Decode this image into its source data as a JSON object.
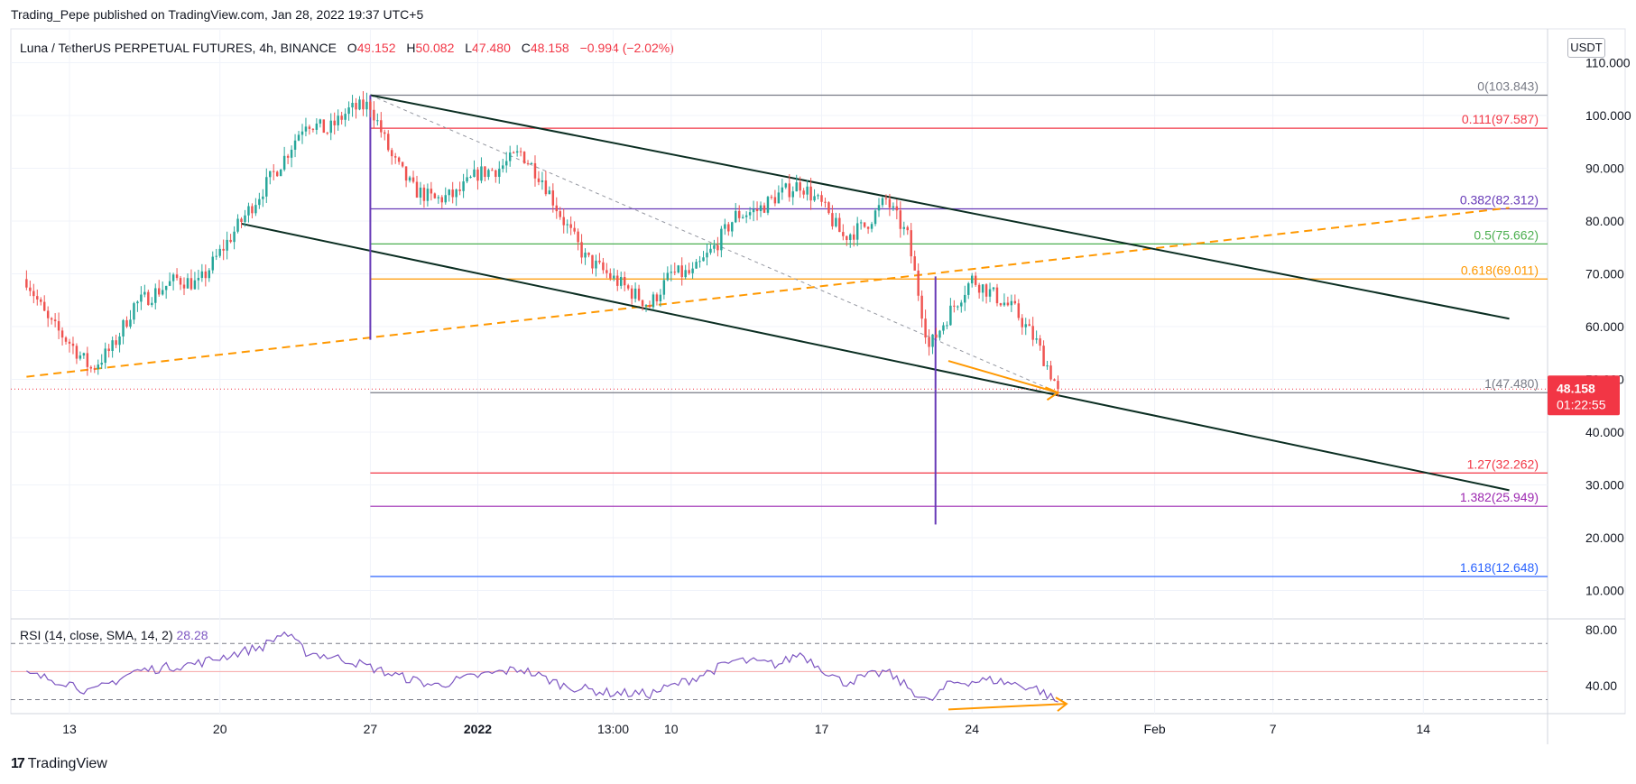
{
  "header": {
    "published_line": "Trading_Pepe published on TradingView.com, Jan 28, 2022 19:37 UTC+5",
    "symbol": "Luna / TetherUS PERPETUAL FUTURES, 4h, BINANCE",
    "o_label": "O",
    "o_value": "49.152",
    "h_label": "H",
    "h_value": "50.082",
    "l_label": "L",
    "l_value": "47.480",
    "c_label": "C",
    "c_value": "48.158",
    "change": "−0.994 (−2.02%)"
  },
  "currency_badge": "USDT",
  "brand": {
    "logo_glyph": "17",
    "name": "TradingView"
  },
  "rsi": {
    "label": "RSI (14, close, SMA, 14, 2)",
    "value": "28.28"
  },
  "colors": {
    "up": "#26a69a",
    "down": "#ef5350",
    "price_badge": "#f23645",
    "rsi_line": "#7e57c2",
    "fib_orange": "#ff9800",
    "channel": "#0b2e22"
  },
  "chart_data": {
    "type": "candlestick",
    "title": "Luna / TetherUS PERPETUAL FUTURES, 4h, BINANCE",
    "ylim": [
      5,
      115
    ],
    "y_ticks": [
      "110.000",
      "100.000",
      "90.000",
      "80.000",
      "70.000",
      "60.000",
      "50.000",
      "40.000",
      "30.000",
      "20.000",
      "10.000"
    ],
    "x_ticks": [
      "13",
      "20",
      "27",
      "2022",
      "13:00",
      "10",
      "17",
      "24",
      "Feb",
      "7",
      "14"
    ],
    "last_price": "48.158",
    "countdown": "01:22:55",
    "fib_levels": [
      {
        "label": "0(103.843)",
        "value": 103.843,
        "color": "#787b86"
      },
      {
        "label": "0.111(97.587)",
        "value": 97.587,
        "color": "#f23645"
      },
      {
        "label": "0.382(82.312)",
        "value": 82.312,
        "color": "#673ab7"
      },
      {
        "label": "0.5(75.662)",
        "value": 75.662,
        "color": "#4caf50"
      },
      {
        "label": "0.618(69.011)",
        "value": 69.011,
        "color": "#ff9800"
      },
      {
        "label": "1(47.480)",
        "value": 47.48,
        "color": "#787b86"
      },
      {
        "label": "1.27(32.262)",
        "value": 32.262,
        "color": "#f23645"
      },
      {
        "label": "1.382(25.949)",
        "value": 25.949,
        "color": "#9c27b0"
      },
      {
        "label": "1.618(12.648)",
        "value": 12.648,
        "color": "#2962ff"
      }
    ],
    "price_keypoints": [
      [
        "Dec 11",
        69
      ],
      [
        "Dec 12",
        61
      ],
      [
        "Dec 13",
        57
      ],
      [
        "Dec 14",
        52
      ],
      [
        "Dec 15",
        56
      ],
      [
        "Dec 16",
        64
      ],
      [
        "Dec 18",
        69
      ],
      [
        "Dec 19",
        68
      ],
      [
        "Dec 20",
        74
      ],
      [
        "Dec 21",
        80
      ],
      [
        "Dec 22",
        86
      ],
      [
        "Dec 23",
        92
      ],
      [
        "Dec 24",
        99
      ],
      [
        "Dec 25",
        97
      ],
      [
        "Dec 26",
        101
      ],
      [
        "Dec 27",
        102
      ],
      [
        "Dec 28",
        92
      ],
      [
        "Dec 29",
        86
      ],
      [
        "Dec 30",
        84
      ],
      [
        "Dec 31",
        85
      ],
      [
        "Jan 1",
        89
      ],
      [
        "Jan 2",
        90
      ],
      [
        "Jan 3",
        93
      ],
      [
        "Jan 4",
        88
      ],
      [
        "Jan 5",
        80
      ],
      [
        "Jan 6",
        73
      ],
      [
        "Jan 7",
        70
      ],
      [
        "Jan 8",
        67
      ],
      [
        "Jan 9",
        64
      ],
      [
        "Jan 10",
        70
      ],
      [
        "Jan 11",
        70
      ],
      [
        "Jan 12",
        75
      ],
      [
        "Jan 13",
        81
      ],
      [
        "Jan 14",
        82
      ],
      [
        "Jan 15",
        85
      ],
      [
        "Jan 16",
        87
      ],
      [
        "Jan 17",
        83
      ],
      [
        "Jan 18",
        77
      ],
      [
        "Jan 19",
        79
      ],
      [
        "Jan 20",
        84
      ],
      [
        "Jan 21",
        77
      ],
      [
        "Jan 22",
        56
      ],
      [
        "Jan 23",
        63
      ],
      [
        "Jan 24",
        69
      ],
      [
        "Jan 25",
        66
      ],
      [
        "Jan 26",
        63
      ],
      [
        "Jan 27",
        57
      ],
      [
        "Jan 28",
        48.158
      ]
    ],
    "rsi_keypoints": [
      [
        "Dec 11",
        48
      ],
      [
        "Dec 13",
        42
      ],
      [
        "Dec 14",
        35
      ],
      [
        "Dec 16",
        50
      ],
      [
        "Dec 19",
        56
      ],
      [
        "Dec 22",
        68
      ],
      [
        "Dec 23",
        78
      ],
      [
        "Dec 24",
        64
      ],
      [
        "Dec 26",
        58
      ],
      [
        "Dec 28",
        48
      ],
      [
        "Dec 30",
        40
      ],
      [
        "Jan 1",
        47
      ],
      [
        "Jan 3",
        52
      ],
      [
        "Jan 5",
        40
      ],
      [
        "Jan 7",
        35
      ],
      [
        "Jan 9",
        34
      ],
      [
        "Jan 11",
        45
      ],
      [
        "Jan 13",
        58
      ],
      [
        "Jan 15",
        55
      ],
      [
        "Jan 16",
        63
      ],
      [
        "Jan 18",
        42
      ],
      [
        "Jan 20",
        50
      ],
      [
        "Jan 22",
        28
      ],
      [
        "Jan 23",
        42
      ],
      [
        "Jan 25",
        44
      ],
      [
        "Jan 27",
        38
      ],
      [
        "Jan 28",
        28.28
      ]
    ],
    "rsi_ticks": [
      "80.00",
      "40.00"
    ],
    "rsi_levels": [
      70,
      50,
      30
    ],
    "rsi_ylim": [
      20,
      85
    ],
    "drawings": {
      "channel_upper": [
        [
          "Dec 27",
          103.843
        ],
        [
          "Feb 18",
          61.5
        ]
      ],
      "channel_lower": [
        [
          "Dec 21",
          79.5
        ],
        [
          "Feb 18",
          29
        ]
      ],
      "support_trend_dashed": [
        [
          "Dec 11",
          50.5
        ],
        [
          "Feb 18",
          82.5
        ]
      ],
      "fib_diagonal_dashed": [
        [
          "Dec 27",
          103.843
        ],
        [
          "Jan 28",
          47.48
        ]
      ]
    }
  }
}
